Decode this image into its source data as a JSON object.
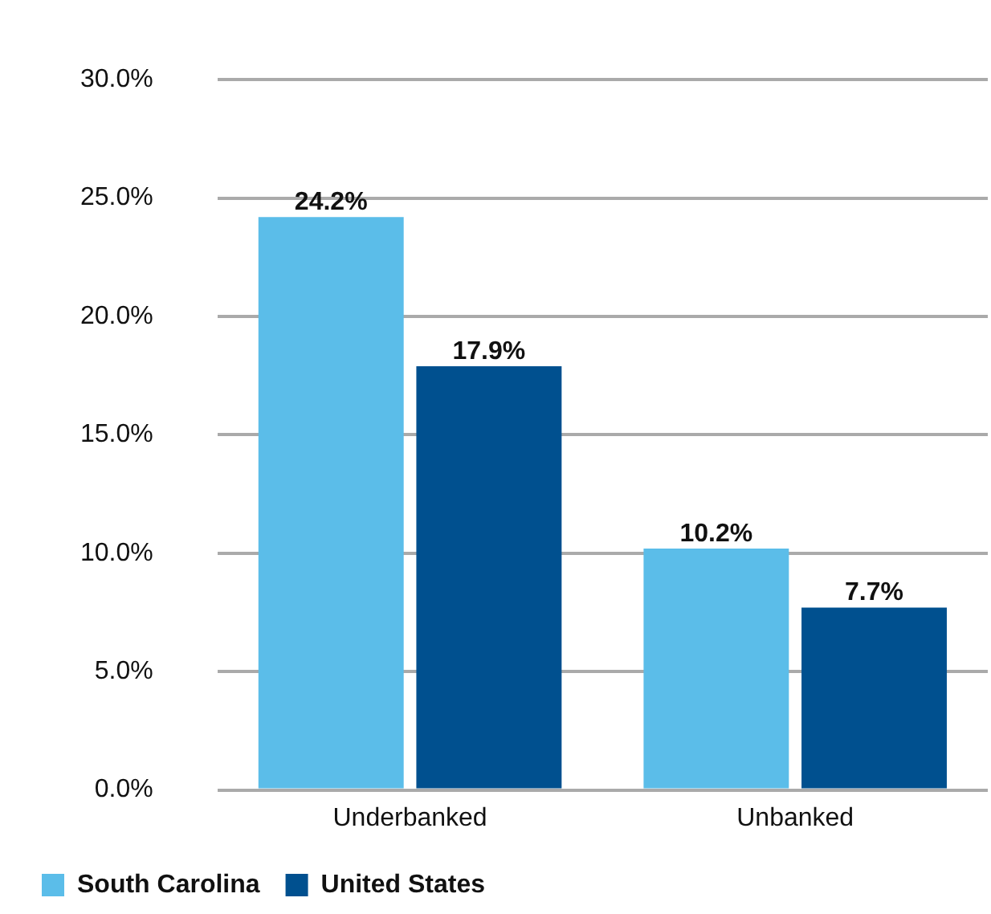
{
  "chart_data": {
    "type": "bar",
    "categories": [
      "Underbanked",
      "Unbanked"
    ],
    "series": [
      {
        "name": "South Carolina",
        "color": "#5bbde9",
        "values": [
          24.2,
          10.2
        ],
        "value_labels": [
          "24.2%",
          "10.2%"
        ]
      },
      {
        "name": "United States",
        "color": "#00508f",
        "values": [
          17.9,
          7.7
        ],
        "value_labels": [
          "17.9%",
          "7.7%"
        ]
      }
    ],
    "ylim": [
      0,
      30
    ],
    "yticks": [
      {
        "value": 0,
        "label": "0.0%"
      },
      {
        "value": 5,
        "label": "5.0%"
      },
      {
        "value": 10,
        "label": "10.0%"
      },
      {
        "value": 15,
        "label": "15.0%"
      },
      {
        "value": 20,
        "label": "20.0%"
      },
      {
        "value": 25,
        "label": "25.0%"
      },
      {
        "value": 30,
        "label": "30.0%"
      }
    ],
    "grid": "y",
    "legend": "bottom left"
  }
}
